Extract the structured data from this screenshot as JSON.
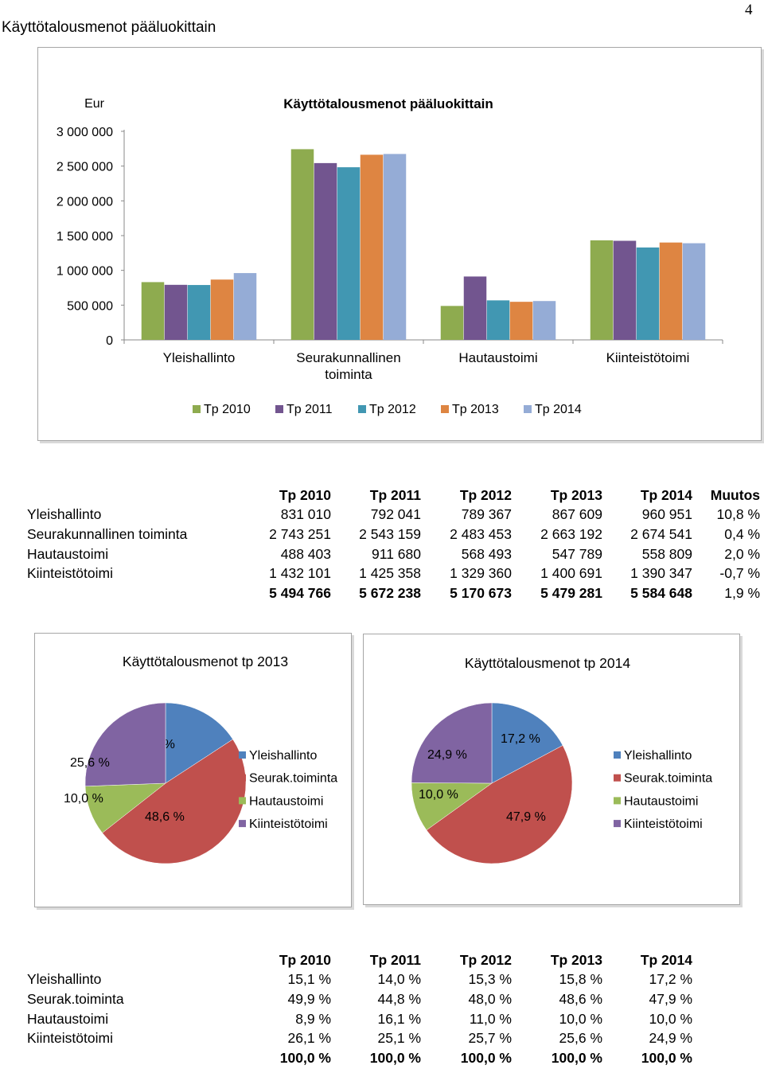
{
  "page": {
    "title": "Käyttötalousmenot pääluokittain",
    "number": "4"
  },
  "chart_data": [
    {
      "type": "bar",
      "title": "Käyttötalousmenot pääluokittain",
      "ylabel": "Eur",
      "categories": [
        "Yleishallinto",
        "Seurakunnallinen toiminta",
        "Hautaustoimi",
        "Kiinteistötoimi"
      ],
      "category_lines": [
        [
          "Yleishallinto"
        ],
        [
          "Seurakunnallinen",
          "toiminta"
        ],
        [
          "Hautaustoimi"
        ],
        [
          "Kiinteistötoimi"
        ]
      ],
      "series": [
        {
          "name": "Tp 2010",
          "color": "#8eab4f",
          "values": [
            831010,
            2743251,
            488403,
            1432101
          ]
        },
        {
          "name": "Tp 2011",
          "color": "#72558f",
          "values": [
            792041,
            2543159,
            911680,
            1425358
          ]
        },
        {
          "name": "Tp 2012",
          "color": "#4197b2",
          "values": [
            789367,
            2483453,
            568493,
            1329360
          ]
        },
        {
          "name": "Tp 2013",
          "color": "#de8542",
          "values": [
            867609,
            2663192,
            547789,
            1400691
          ]
        },
        {
          "name": "Tp 2014",
          "color": "#95acd6",
          "values": [
            960951,
            2674541,
            558809,
            1390347
          ]
        }
      ],
      "ylim": [
        0,
        3000000
      ],
      "yticks": [
        "0",
        "500 000",
        "1 000 000",
        "1 500 000",
        "2 000 000",
        "2 500 000",
        "3 000 000"
      ],
      "legend_position": "bottom",
      "grid": false
    },
    {
      "type": "table",
      "columns": [
        "",
        "Tp 2010",
        "Tp 2011",
        "Tp 2012",
        "Tp 2013",
        "Tp 2014",
        "Muutos"
      ],
      "rows": [
        [
          "Yleishallinto",
          "831 010",
          "792 041",
          "789 367",
          "867 609",
          "960 951",
          "10,8 %"
        ],
        [
          "Seurakunnallinen toiminta",
          "2 743 251",
          "2 543 159",
          "2 483 453",
          "2 663 192",
          "2 674 541",
          "0,4 %"
        ],
        [
          "Hautaustoimi",
          "488 403",
          "911 680",
          "568 493",
          "547 789",
          "558 809",
          "2,0 %"
        ],
        [
          "Kiinteistötoimi",
          "1 432 101",
          "1 425 358",
          "1 329 360",
          "1 400 691",
          "1 390 347",
          "-0,7 %"
        ]
      ],
      "total_row": [
        "",
        "5 494 766",
        "5 672 238",
        "5 170 673",
        "5 479 281",
        "5 584 648",
        "1,9 %"
      ]
    },
    {
      "type": "pie",
      "title": "Käyttötalousmenot tp 2013",
      "labels": [
        "Yleishallinto",
        "Seurak.toiminta",
        "Hautaustoimi",
        "Kiinteistötoimi"
      ],
      "values": [
        15.8,
        48.6,
        10.0,
        25.6
      ],
      "value_labels": [
        "15,8 %",
        "48,6 %",
        "10,0 %",
        "25,6 %"
      ],
      "colors": [
        "#4f81bd",
        "#c0504d",
        "#9bbb59",
        "#8064a2"
      ],
      "legend_position": "right"
    },
    {
      "type": "pie",
      "title": "Käyttötalousmenot tp 2014",
      "labels": [
        "Yleishallinto",
        "Seurak.toiminta",
        "Hautaustoimi",
        "Kiinteistötoimi"
      ],
      "values": [
        17.2,
        47.9,
        10.0,
        24.9
      ],
      "value_labels": [
        "17,2 %",
        "47,9 %",
        "10,0 %",
        "24,9 %"
      ],
      "colors": [
        "#4f81bd",
        "#c0504d",
        "#9bbb59",
        "#8064a2"
      ],
      "legend_position": "right"
    },
    {
      "type": "table",
      "columns": [
        "",
        "Tp 2010",
        "Tp 2011",
        "Tp 2012",
        "Tp 2013",
        "Tp 2014"
      ],
      "rows": [
        [
          "Yleishallinto",
          "15,1 %",
          "14,0 %",
          "15,3 %",
          "15,8 %",
          "17,2 %"
        ],
        [
          "Seurak.toiminta",
          "49,9 %",
          "44,8 %",
          "48,0 %",
          "48,6 %",
          "47,9 %"
        ],
        [
          "Hautaustoimi",
          "8,9 %",
          "16,1 %",
          "11,0 %",
          "10,0 %",
          "10,0 %"
        ],
        [
          "Kiinteistötoimi",
          "26,1 %",
          "25,1 %",
          "25,7 %",
          "25,6 %",
          "24,9 %"
        ]
      ],
      "total_row": [
        "",
        "100,0 %",
        "100,0 %",
        "100,0 %",
        "100,0 %",
        "100,0 %"
      ]
    }
  ]
}
